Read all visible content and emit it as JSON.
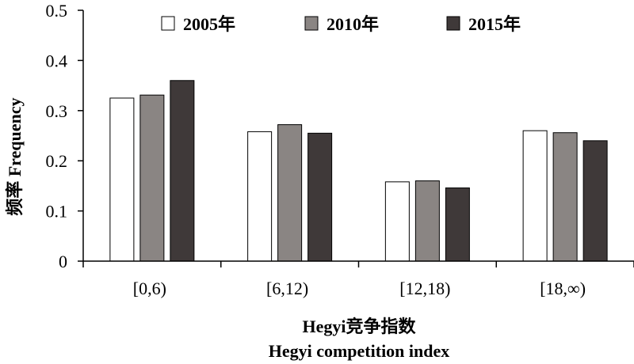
{
  "chart_data": {
    "type": "bar",
    "categories": [
      "[0,6)",
      "[6,12)",
      "[12,18)",
      "[18,∞)"
    ],
    "series": [
      {
        "name": "2005年",
        "values": [
          0.325,
          0.258,
          0.158,
          0.26
        ],
        "color": "#ffffff"
      },
      {
        "name": "2010年",
        "values": [
          0.331,
          0.272,
          0.16,
          0.256
        ],
        "color": "#8a8583"
      },
      {
        "name": "2015年",
        "values": [
          0.36,
          0.255,
          0.146,
          0.24
        ],
        "color": "#3f3939"
      }
    ],
    "ylim": [
      0,
      0.5
    ],
    "yticks": [
      "0",
      "0.1",
      "0.2",
      "0.3",
      "0.4",
      "0.5"
    ],
    "ylabel": "频率 Frequency",
    "xlabel_lines": [
      "Hegyi竞争指数",
      "Hegyi competition index"
    ],
    "legend_position": "top",
    "grid": false
  }
}
